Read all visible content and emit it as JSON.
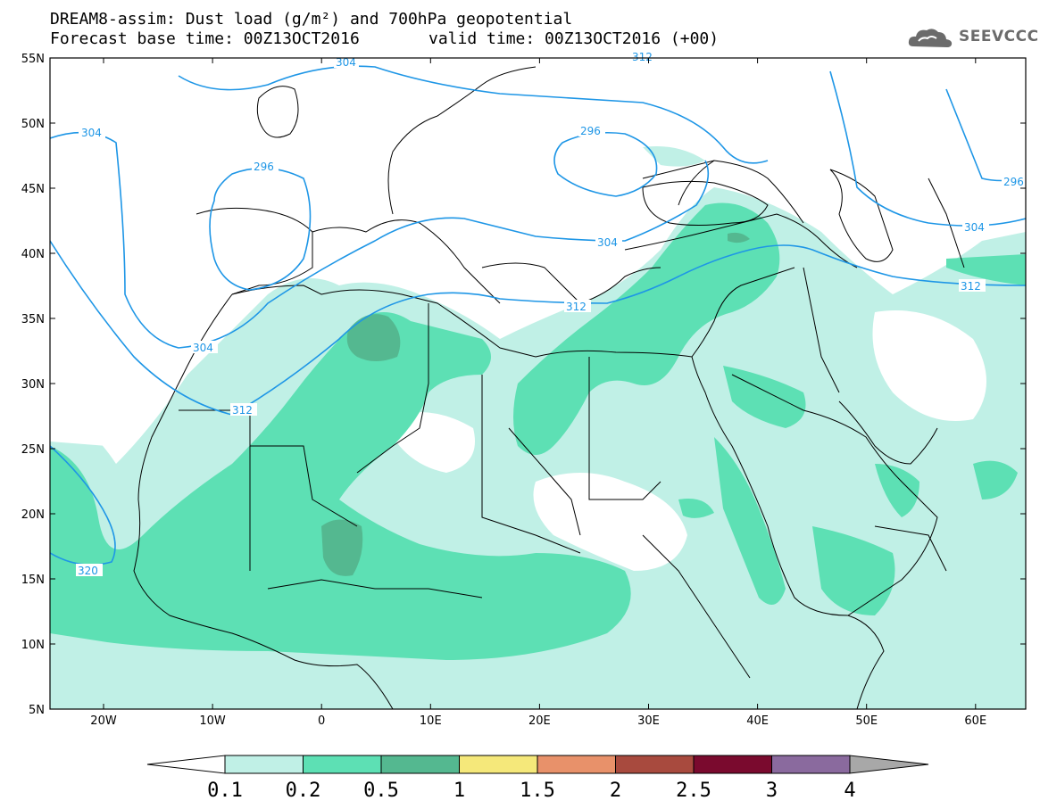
{
  "title_line1": "DREAM8-assim: Dust load (g/m²) and 700hPa geopotential",
  "title_line2a": "Forecast base time: 00Z13OCT2016",
  "title_line2b": "valid time: 00Z13OCT2016 (+00)",
  "logo_text": "SEEVCCC",
  "lat_labels": [
    "55N",
    "50N",
    "45N",
    "40N",
    "35N",
    "30N",
    "25N",
    "20N",
    "15N",
    "10N",
    "5N"
  ],
  "lon_labels": [
    "20W",
    "10W",
    "0",
    "10E",
    "20E",
    "30E",
    "40E",
    "50E",
    "60E"
  ],
  "contour_labels": [
    "304",
    "304",
    "296",
    "296",
    "296",
    "304",
    "304",
    "312",
    "312",
    "312",
    "320",
    "304",
    "312"
  ],
  "colorbar": {
    "labels": [
      "0.1",
      "0.2",
      "0.5",
      "1",
      "1.5",
      "2",
      "2.5",
      "3",
      "4"
    ],
    "colors": [
      "#c0f0e6",
      "#5de0b4",
      "#54b890",
      "#f5e87a",
      "#e8916a",
      "#a84a3e",
      "#7a0a2e",
      "#8a6a9e",
      "#a8a8a8"
    ]
  },
  "colors": {
    "contour": "#1e96e6",
    "dust_low": "#c0f0e6",
    "dust_mid": "#5de0b4",
    "dust_high": "#54b890"
  }
}
